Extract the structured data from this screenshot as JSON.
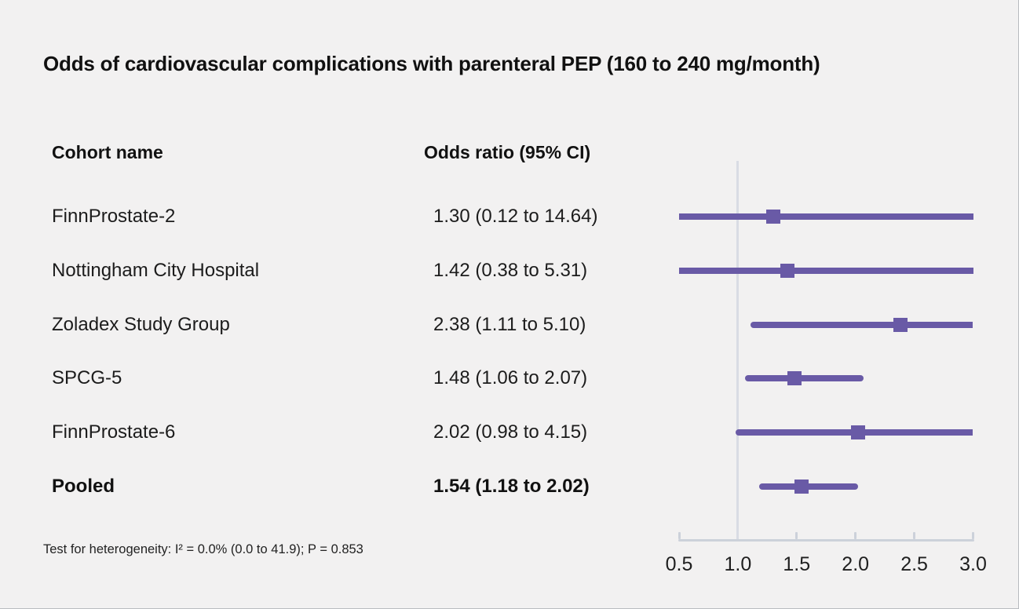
{
  "title": "Odds of cardiovascular complications with parenteral PEP (160 to 240 mg/month)",
  "table": {
    "col1_header": "Cohort name",
    "col2_header": "Odds ratio (95% CI)"
  },
  "footnote": "Test for heterogeneity: I² = 0.0% (0.0 to 41.9); P = 0.853",
  "chart_data": {
    "type": "scatter",
    "subtype": "forest-plot",
    "title": "Odds of cardiovascular complications with parenteral PEP (160 to 240 mg/month)",
    "columns": [
      "Cohort name",
      "Odds ratio (95% CI)"
    ],
    "studies": [
      {
        "name": "FinnProstate-2",
        "or": 1.3,
        "ci_low": 0.12,
        "ci_high": 14.64,
        "display": "1.30 (0.12 to 14.64)",
        "pooled": false
      },
      {
        "name": "Nottingham City Hospital",
        "or": 1.42,
        "ci_low": 0.38,
        "ci_high": 5.31,
        "display": "1.42 (0.38 to 5.31)",
        "pooled": false
      },
      {
        "name": "Zoladex Study Group",
        "or": 2.38,
        "ci_low": 1.11,
        "ci_high": 5.1,
        "display": "2.38 (1.11 to 5.10)",
        "pooled": false
      },
      {
        "name": "SPCG-5",
        "or": 1.48,
        "ci_low": 1.06,
        "ci_high": 2.07,
        "display": "1.48 (1.06 to 2.07)",
        "pooled": false
      },
      {
        "name": "FinnProstate-6",
        "or": 2.02,
        "ci_low": 0.98,
        "ci_high": 4.15,
        "display": "2.02 (0.98 to 4.15)",
        "pooled": false
      },
      {
        "name": "Pooled",
        "or": 1.54,
        "ci_low": 1.18,
        "ci_high": 2.02,
        "display": "1.54 (1.18 to 2.02)",
        "pooled": true
      }
    ],
    "x_axis": {
      "range": [
        0.5,
        3.0
      ],
      "tick_values": [
        0.5,
        1.0,
        1.5,
        2.0,
        2.5,
        3.0
      ],
      "tick_labels": [
        "0.5",
        "1.0",
        "1.5",
        "2.0",
        "2.5",
        "3.0"
      ],
      "reference_line": 1.0,
      "grid": false
    },
    "heterogeneity_note": "Test for heterogeneity: I² = 0.0% (0.0 to 41.9); P = 0.853",
    "colors": {
      "marker": "#695aa6",
      "ci_line": "#695aa6",
      "reference_line": "#d9dce4",
      "axis": "#ccd1da",
      "background": "#f2f1f1",
      "text": "#1a1a1a"
    },
    "legend": null
  }
}
